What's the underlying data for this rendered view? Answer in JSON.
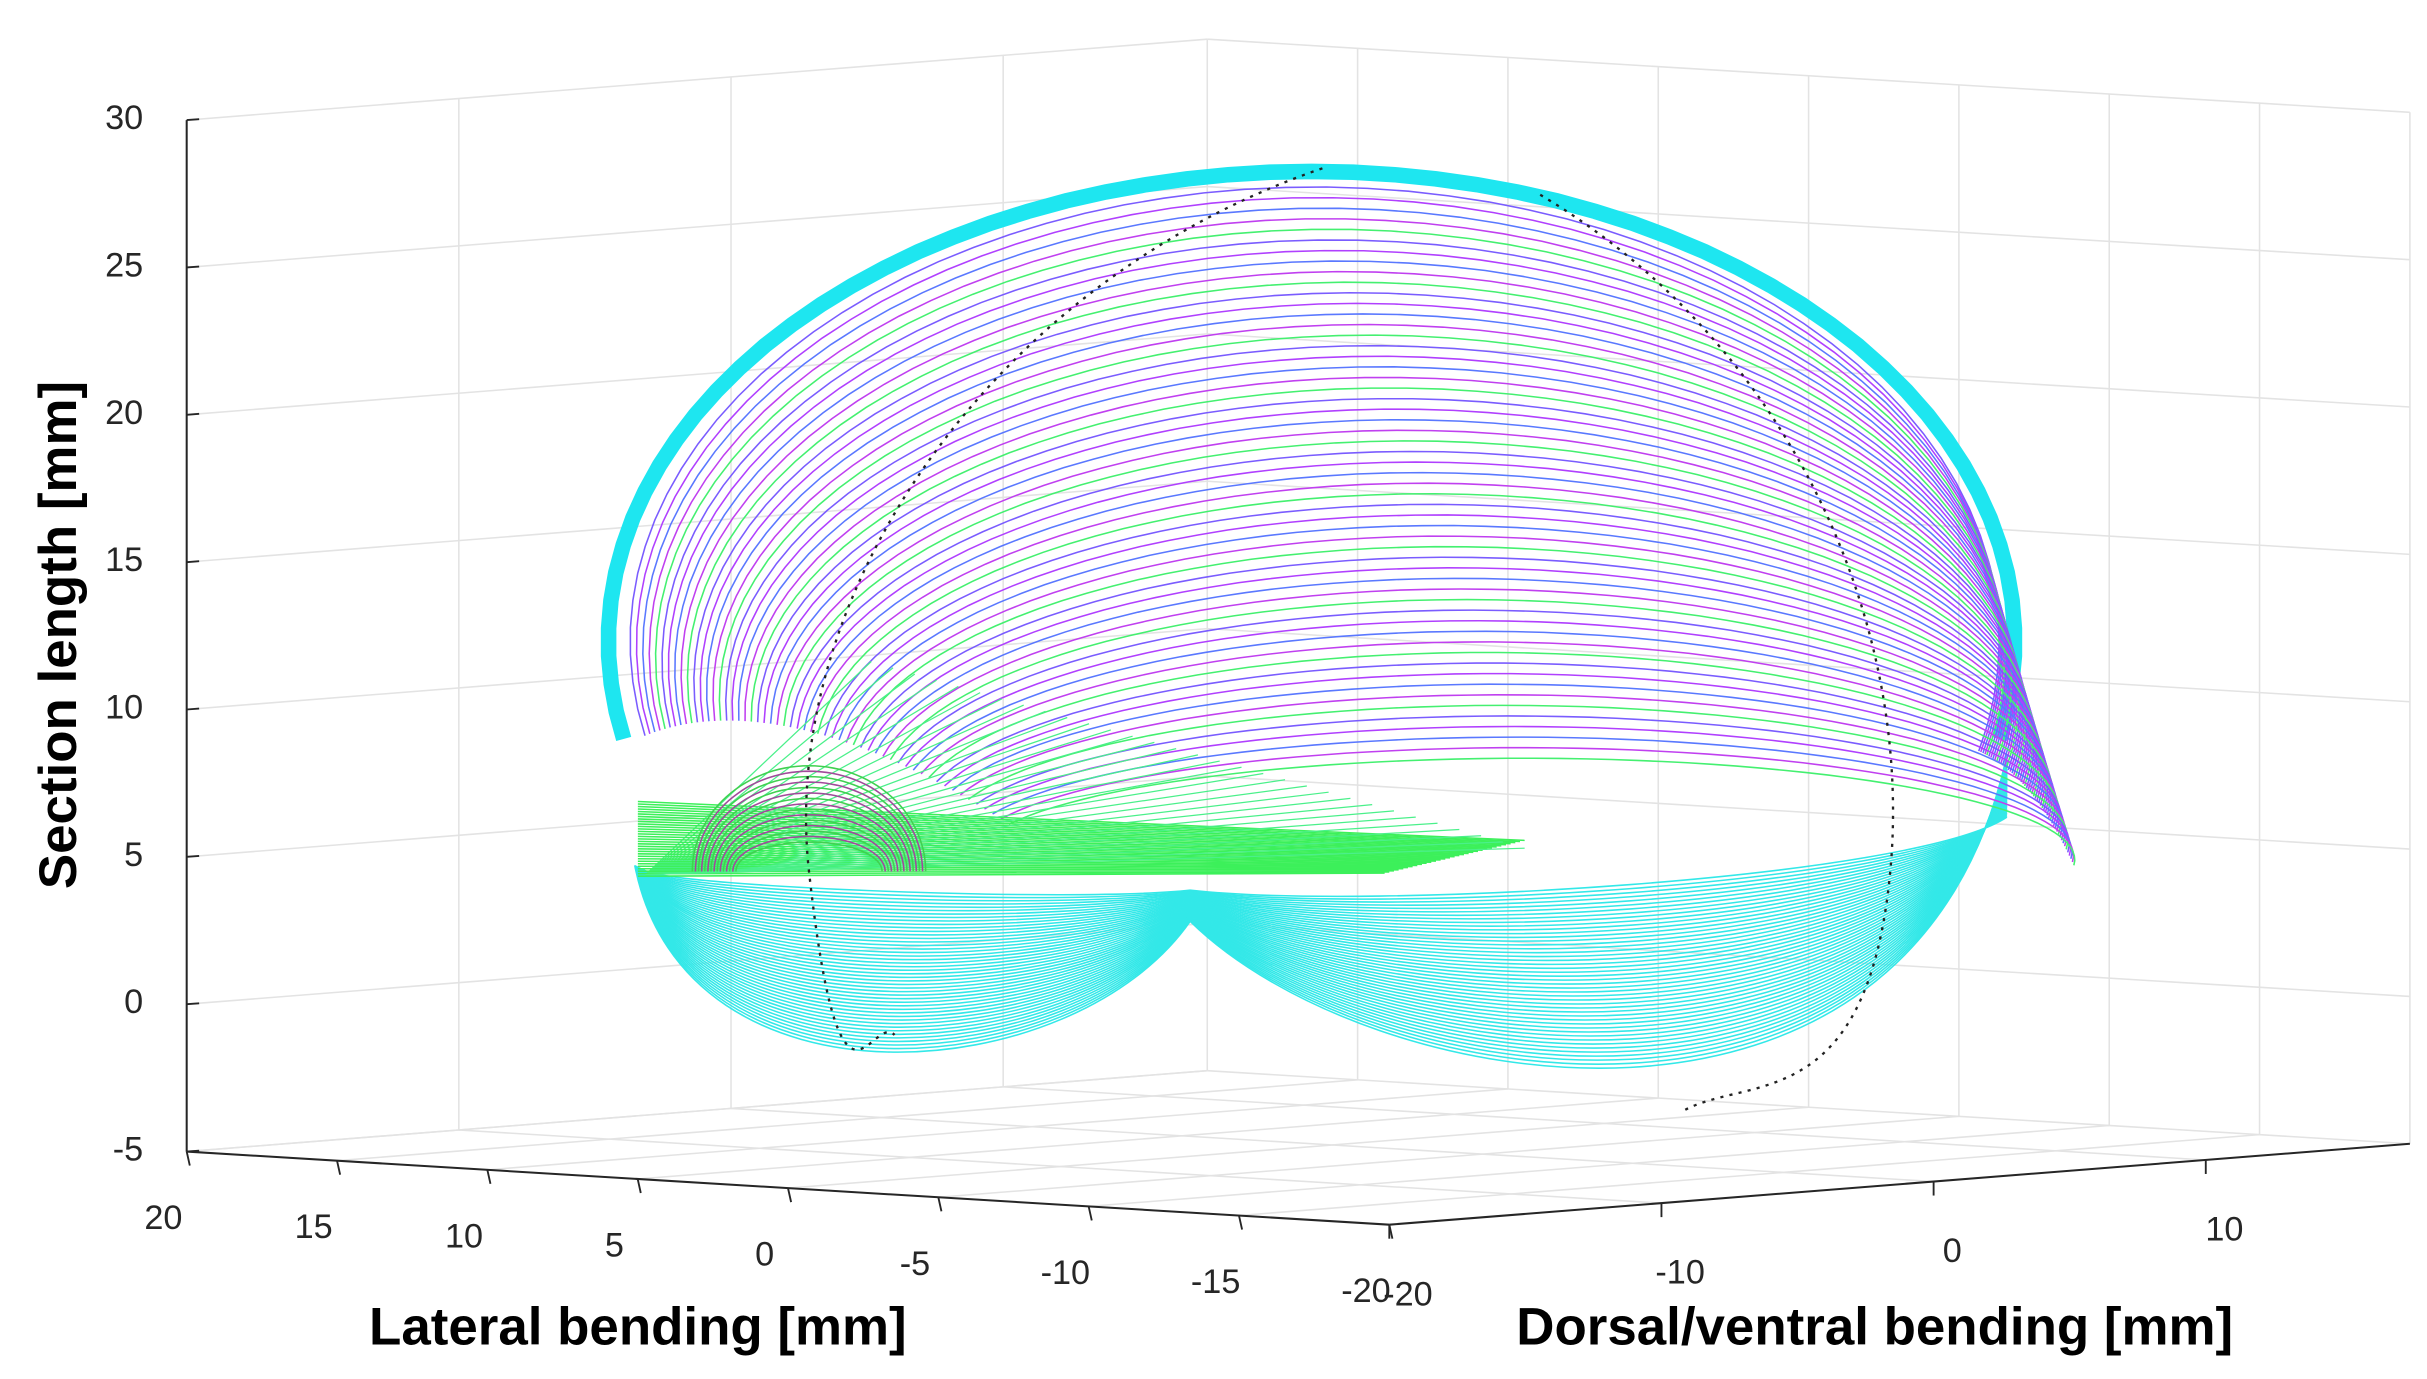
{
  "chart_data": {
    "type": "surface3d",
    "xlabel": "Lateral bending [mm]",
    "ylabel": "Dorsal/ventral bending [mm]",
    "zlabel": "Section length [mm]",
    "xlim": [
      20,
      -20
    ],
    "xticks": [
      20,
      15,
      10,
      5,
      0,
      -5,
      -10,
      -15,
      -20
    ],
    "ylim": [
      -20,
      17.5
    ],
    "yticks": [
      -20,
      -10,
      0,
      10
    ],
    "zlim": [
      -5,
      30
    ],
    "zticks": [
      -5,
      0,
      5,
      10,
      15,
      20,
      25,
      30
    ],
    "grid": true
  }
}
